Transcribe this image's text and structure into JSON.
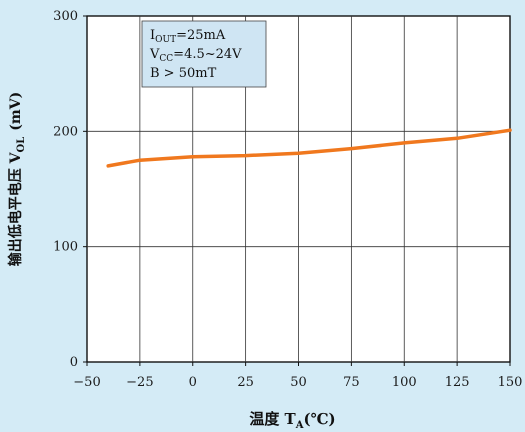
{
  "colors": {
    "background": "#d4ebf6",
    "plot_background": "#ffffff",
    "grid": "#333333",
    "series": "#f0781e",
    "annotation_box": "#cfe5f3"
  },
  "chart_data": {
    "type": "line",
    "xlabel": {
      "main": "温度 T",
      "sub": "A",
      "unit": "(℃)"
    },
    "ylabel": {
      "main": "输出低电平电压 V",
      "sub": "OL",
      "unit": "(mV)"
    },
    "xlim": [
      -50,
      150
    ],
    "ylim": [
      0,
      300
    ],
    "xticks": [
      -50,
      -25,
      0,
      25,
      50,
      75,
      100,
      125,
      150
    ],
    "xtick_labels": [
      "−50",
      "−25",
      "0",
      "25",
      "50",
      "75",
      "100",
      "125",
      "150"
    ],
    "yticks": [
      0,
      100,
      200,
      300
    ],
    "ytick_labels": [
      "0",
      "100",
      "200",
      "300"
    ],
    "grid": true,
    "series": [
      {
        "x": [
          -40,
          -25,
          0,
          25,
          50,
          75,
          100,
          125,
          150
        ],
        "y": [
          170,
          175,
          178,
          179,
          181,
          185,
          190,
          194,
          201
        ]
      }
    ],
    "annotation": [
      {
        "main": "I",
        "sub": "OUT",
        "rest": "=25mA"
      },
      {
        "main": "V",
        "sub": "CC",
        "rest": "=4.5~24V"
      },
      {
        "main": "B > 50mT",
        "sub": "",
        "rest": ""
      }
    ]
  }
}
